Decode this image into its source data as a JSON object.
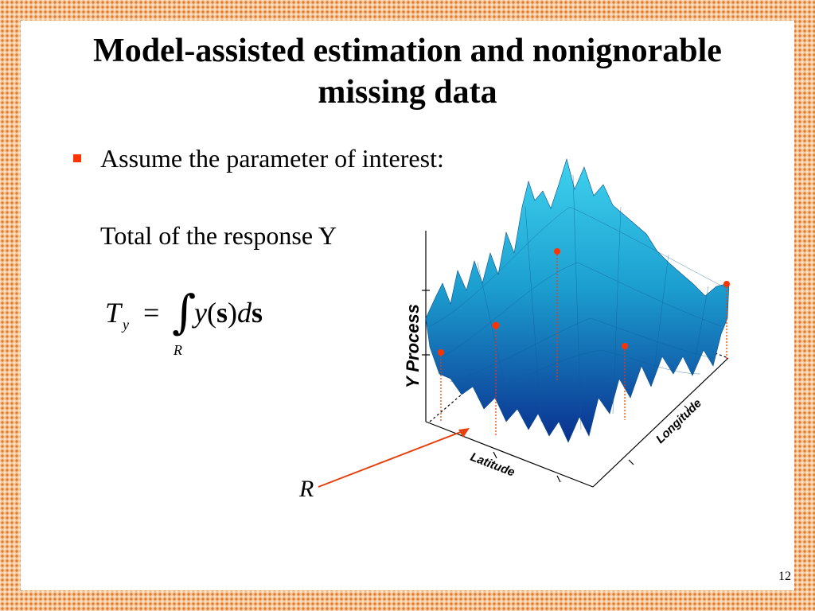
{
  "slide": {
    "title_line1": "Model-assisted estimation and nonignorable",
    "title_line2": "missing data",
    "bullet": "Assume the parameter of interest:",
    "subtext": "Total of the response Y",
    "formula": {
      "lhs": "T",
      "lhs_sub": "y",
      "equals": "=",
      "integral": "∫",
      "limit": "R",
      "integrand_y": "y",
      "integrand_open": "(",
      "integrand_s": "s",
      "integrand_close": ")",
      "integrand_d": "d",
      "integrand_ds": "s"
    },
    "plot": {
      "z_axis_label": "Y Process",
      "x_axis_label": "Latitude",
      "y_axis_label": "Longitude"
    },
    "region_label": "R",
    "page_number": "12",
    "colors": {
      "frame_dots": "#e07a2e",
      "bullet": "#ff3300",
      "surface_light": "#35c8e6",
      "surface_dark": "#0a2f8f",
      "arrow": "#e8400c",
      "sample_points": "#ff3300"
    }
  }
}
